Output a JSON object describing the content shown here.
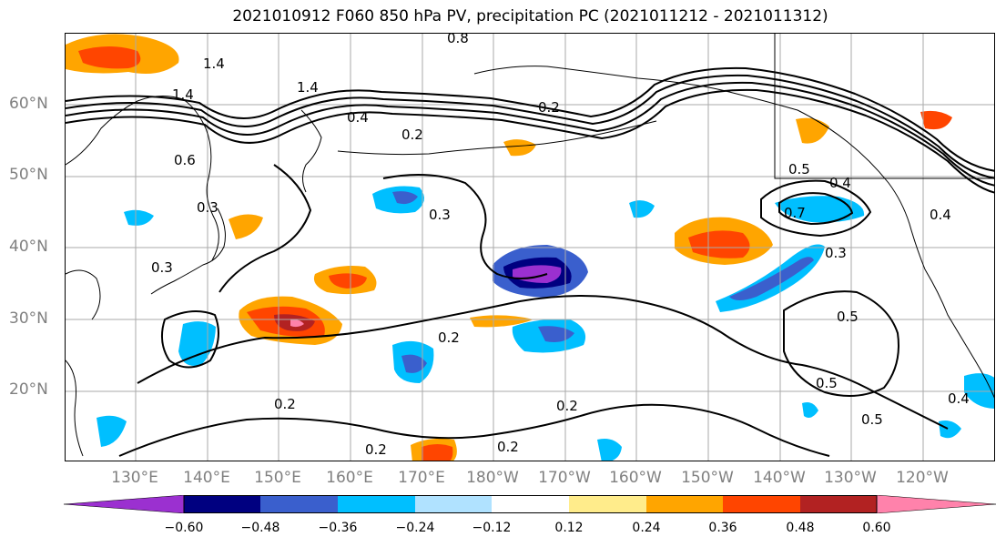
{
  "title": "2021010912 F060 850 hPa PV, precipitation PC (2021011212 - 2021011312)",
  "lat_labels": [
    "60°N",
    "50°N",
    "40°N",
    "30°N",
    "20°N"
  ],
  "lon_labels": [
    "130°E",
    "140°E",
    "150°E",
    "160°E",
    "170°E",
    "180°W",
    "170°W",
    "160°W",
    "150°W",
    "140°W",
    "130°W",
    "120°W"
  ],
  "contour_labels": [
    "1.4",
    "1.4",
    "1.4",
    "0.8",
    "0.6",
    "0.4",
    "0.2",
    "0.2",
    "0.3",
    "0.3",
    "0.5",
    "0.4",
    "0.7",
    "0.3",
    "0.5",
    "0.5",
    "0.5",
    "0.4",
    "0.2",
    "0.2",
    "0.2",
    "0.2",
    "0.2",
    "0.3",
    "0.4"
  ],
  "colorbar": {
    "colors": [
      "#9b30d0",
      "#000080",
      "#3a5fcd",
      "#00bfff",
      "#b0e2ff",
      "#ffffff",
      "#ffec8b",
      "#ffa500",
      "#ff4500",
      "#b22222",
      "#ff82ab"
    ],
    "ticks": [
      "−0.60",
      "−0.48",
      "−0.36",
      "−0.24",
      "−0.12",
      "0.12",
      "0.24",
      "0.36",
      "0.48",
      "0.60"
    ]
  }
}
